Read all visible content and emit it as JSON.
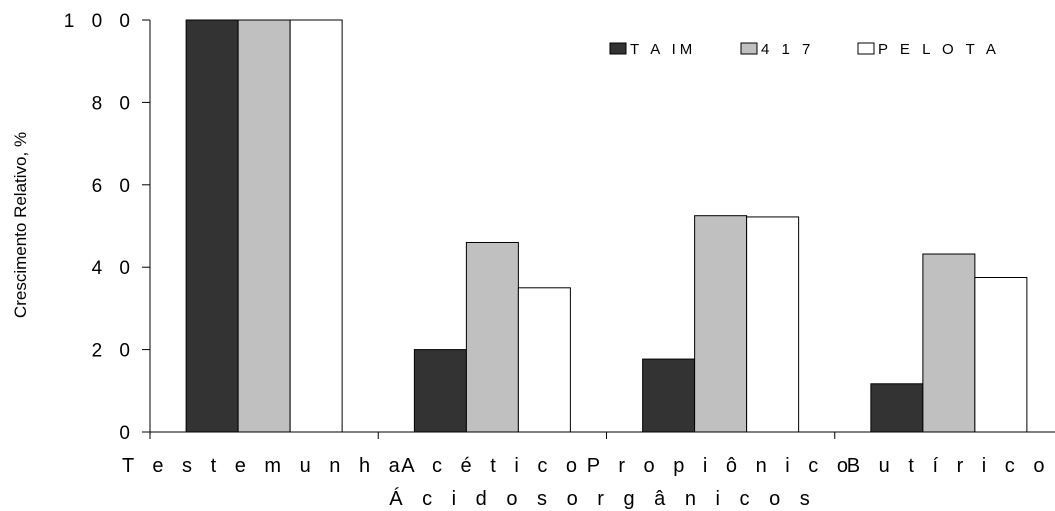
{
  "chart_data": {
    "type": "bar",
    "title": "",
    "xlabel": "Á c i d o s   o r g â n i c o s",
    "ylabel": "Crescimento Relativo, %",
    "ylim": [
      0,
      100
    ],
    "yticks": [
      0,
      20,
      40,
      60,
      80,
      100
    ],
    "ytick_labels": [
      "0",
      "2 0",
      "4 0",
      "6 0",
      "8 0",
      "1 0 0"
    ],
    "categories": [
      "T e s t e m u n h a",
      "A c é t i c o",
      "P r o p i ô n i c o",
      "B u t í r i c o"
    ],
    "series": [
      {
        "name": "T A IM",
        "color": "#333333",
        "values": [
          100,
          20,
          17.7,
          11.7
        ]
      },
      {
        "name": "4 1 7",
        "color": "#c0c0c0",
        "values": [
          100,
          46,
          52.5,
          43.2
        ]
      },
      {
        "name": "P E L O T A",
        "color": "#ffffff",
        "values": [
          100,
          35,
          52.2,
          37.5
        ]
      }
    ],
    "grid": false,
    "legend_position": "top-right"
  }
}
